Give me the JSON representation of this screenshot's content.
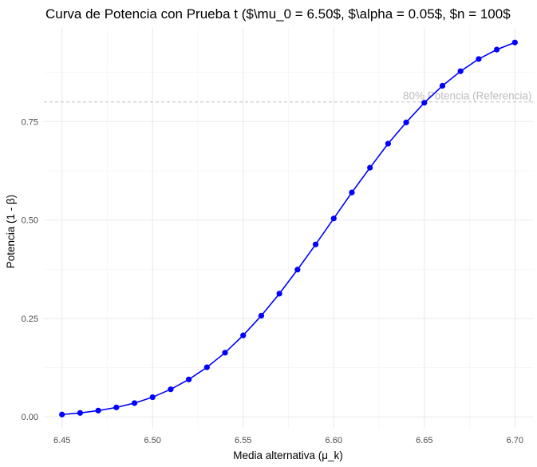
{
  "chart_data": {
    "type": "line",
    "title": "Curva de Potencia con Prueba t ($\\mu_0 = 6.50$, $\\alpha = 0.05$, $n = 100$",
    "xlabel": "Media alternativa (μ_k)",
    "ylabel": "Potencia (1 - β)",
    "xlim": [
      6.44,
      6.71
    ],
    "ylim": [
      -0.03,
      0.99
    ],
    "x_ticks": [
      6.45,
      6.5,
      6.55,
      6.6,
      6.65,
      6.7
    ],
    "x_tick_labels": [
      "6.45",
      "6.50",
      "6.55",
      "6.60",
      "6.65",
      "6.70"
    ],
    "y_ticks": [
      0.0,
      0.25,
      0.5,
      0.75
    ],
    "y_tick_labels": [
      "0.00",
      "0.25",
      "0.50",
      "0.75"
    ],
    "grid": true,
    "series": [
      {
        "color": "#0000ff",
        "x": [
          6.45,
          6.46,
          6.47,
          6.48,
          6.49,
          6.5,
          6.51,
          6.52,
          6.53,
          6.54,
          6.55,
          6.56,
          6.57,
          6.58,
          6.59,
          6.6,
          6.61,
          6.62,
          6.63,
          6.64,
          6.65,
          6.66,
          6.67,
          6.68,
          6.69,
          6.7
        ],
        "y": [
          0.006,
          0.01,
          0.016,
          0.024,
          0.035,
          0.05,
          0.07,
          0.095,
          0.126,
          0.163,
          0.207,
          0.257,
          0.313,
          0.374,
          0.438,
          0.504,
          0.57,
          0.633,
          0.694,
          0.748,
          0.798,
          0.841,
          0.878,
          0.909,
          0.933,
          0.951
        ]
      }
    ],
    "reference_line": {
      "y": 0.8,
      "label": "80% Potencia (Referencia)",
      "color": "#bdbdbd",
      "style": "dashed"
    }
  }
}
